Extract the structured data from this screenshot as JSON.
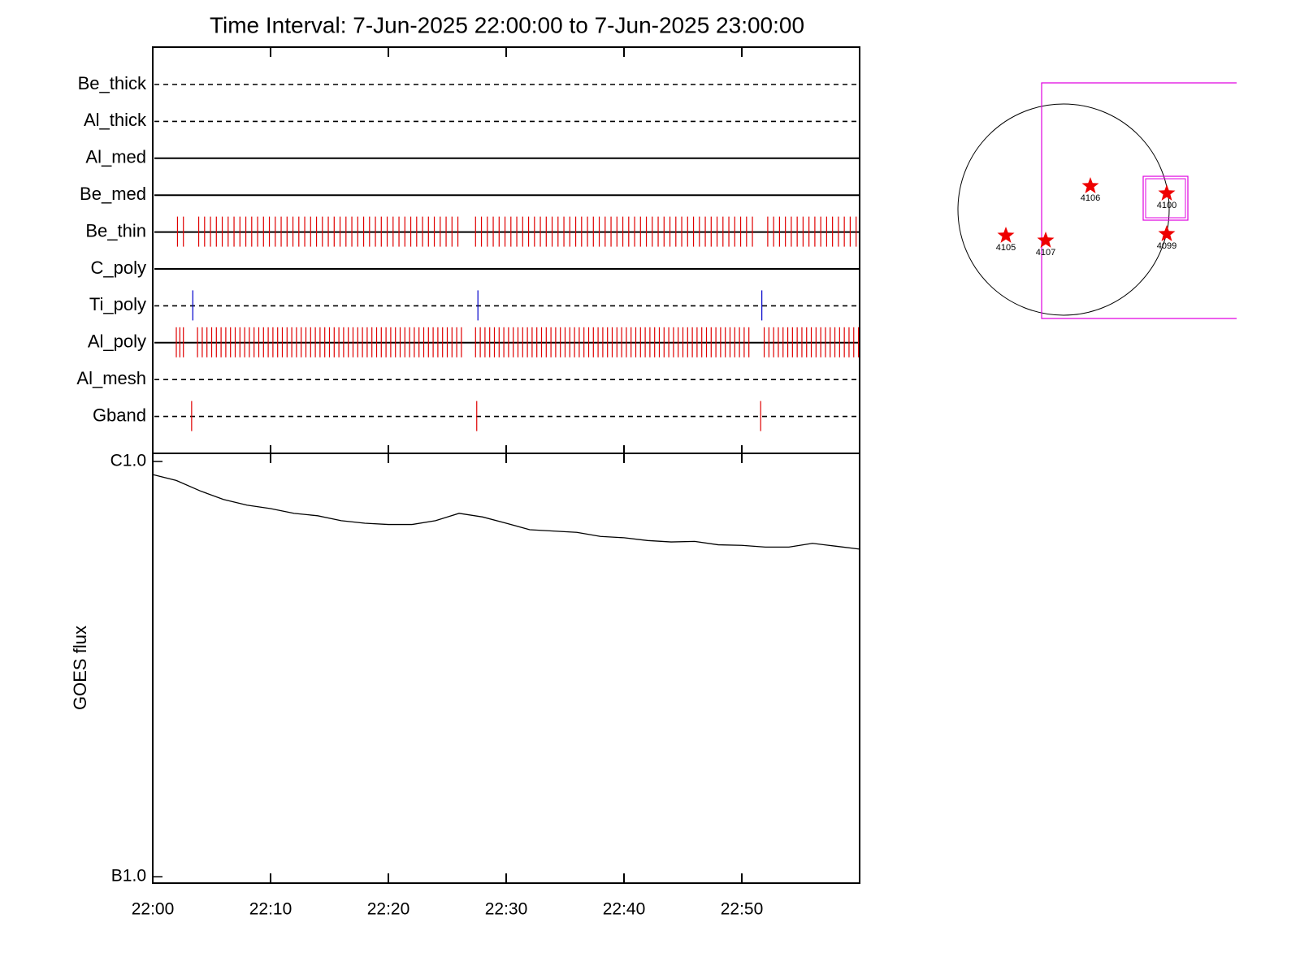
{
  "chart_data": [
    {
      "type": "timeline",
      "title": "Time Interval:  7-Jun-2025 22:00:00 to  7-Jun-2025 23:00:00",
      "xlim": [
        0,
        60
      ],
      "rows": [
        {
          "name": "Be_thick",
          "style": "dashed",
          "events": []
        },
        {
          "name": "Al_thick",
          "style": "dashed",
          "events": []
        },
        {
          "name": "Al_med",
          "style": "solid",
          "events": []
        },
        {
          "name": "Be_med",
          "style": "solid",
          "events": []
        },
        {
          "name": "Be_thin",
          "style": "solid",
          "color": "#e00000",
          "events": [
            2.1,
            2.6,
            3.9,
            4.4,
            4.9,
            5.4,
            5.9,
            6.4,
            6.9,
            7.4,
            7.9,
            8.4,
            8.9,
            9.4,
            9.9,
            10.4,
            10.9,
            11.4,
            11.9,
            12.4,
            12.9,
            13.4,
            13.9,
            14.4,
            14.9,
            15.4,
            15.9,
            16.4,
            16.9,
            17.4,
            17.9,
            18.4,
            18.9,
            19.4,
            19.9,
            20.4,
            20.9,
            21.4,
            21.9,
            22.4,
            22.9,
            23.4,
            23.9,
            24.4,
            24.9,
            25.4,
            25.9,
            27.4,
            27.9,
            28.4,
            28.9,
            29.4,
            29.9,
            30.4,
            30.9,
            31.4,
            31.9,
            32.4,
            32.9,
            33.4,
            33.9,
            34.4,
            34.9,
            35.4,
            35.9,
            36.4,
            36.9,
            37.4,
            37.9,
            38.4,
            38.9,
            39.4,
            39.9,
            40.4,
            40.9,
            41.4,
            41.9,
            42.4,
            42.9,
            43.4,
            43.9,
            44.4,
            44.9,
            45.4,
            45.9,
            46.4,
            46.9,
            47.4,
            47.9,
            48.4,
            48.9,
            49.4,
            49.9,
            50.4,
            50.9,
            52.2,
            52.7,
            53.2,
            53.7,
            54.2,
            54.7,
            55.2,
            55.7,
            56.2,
            56.7,
            57.2,
            57.7,
            58.2,
            58.7,
            59.2,
            59.7
          ]
        },
        {
          "name": "C_poly",
          "style": "solid",
          "events": []
        },
        {
          "name": "Ti_poly",
          "style": "dashed",
          "color": "#0000cc",
          "events": [
            3.4,
            27.6,
            51.7
          ]
        },
        {
          "name": "Al_poly",
          "style": "solid",
          "color": "#e00000",
          "events": [
            2.0,
            2.3,
            2.6,
            3.8,
            4.2,
            4.6,
            5.0,
            5.4,
            5.8,
            6.2,
            6.6,
            7.0,
            7.4,
            7.8,
            8.2,
            8.6,
            9.0,
            9.4,
            9.8,
            10.2,
            10.6,
            11.0,
            11.4,
            11.8,
            12.2,
            12.6,
            13.0,
            13.4,
            13.8,
            14.2,
            14.6,
            15.0,
            15.4,
            15.8,
            16.2,
            16.6,
            17.0,
            17.4,
            17.8,
            18.2,
            18.6,
            19.0,
            19.4,
            19.8,
            20.2,
            20.6,
            21.0,
            21.4,
            21.8,
            22.2,
            22.6,
            23.0,
            23.4,
            23.8,
            24.2,
            24.6,
            25.0,
            25.4,
            25.8,
            26.2,
            27.4,
            27.8,
            28.2,
            28.6,
            29.0,
            29.4,
            29.8,
            30.2,
            30.6,
            31.0,
            31.4,
            31.8,
            32.2,
            32.6,
            33.0,
            33.4,
            33.8,
            34.2,
            34.6,
            35.0,
            35.4,
            35.8,
            36.2,
            36.6,
            37.0,
            37.4,
            37.8,
            38.2,
            38.6,
            39.0,
            39.4,
            39.8,
            40.2,
            40.6,
            41.0,
            41.4,
            41.8,
            42.2,
            42.6,
            43.0,
            43.4,
            43.8,
            44.2,
            44.6,
            45.0,
            45.4,
            45.8,
            46.2,
            46.6,
            47.0,
            47.4,
            47.8,
            48.2,
            48.6,
            49.0,
            49.4,
            49.8,
            50.2,
            50.6,
            51.9,
            52.3,
            52.7,
            53.1,
            53.5,
            53.9,
            54.3,
            54.7,
            55.1,
            55.5,
            55.9,
            56.3,
            56.7,
            57.1,
            57.5,
            57.9,
            58.3,
            58.7,
            59.1,
            59.5,
            59.9
          ]
        },
        {
          "name": "Al_mesh",
          "style": "dashed",
          "events": []
        },
        {
          "name": "Gband",
          "style": "dashed",
          "color": "#e00000",
          "events": [
            3.3,
            27.5,
            51.6
          ]
        }
      ]
    },
    {
      "type": "line",
      "ylabel": "GOES flux",
      "log": true,
      "xlim": [
        0,
        60
      ],
      "ylim": [
        9.65e-08,
        1.046e-06
      ],
      "yticks": [
        {
          "value": 1e-06,
          "label": "C1.0"
        },
        {
          "value": 1e-07,
          "label": "B1.0"
        }
      ],
      "xticks": [
        {
          "value": 0,
          "label": "22:00"
        },
        {
          "value": 10,
          "label": "22:10"
        },
        {
          "value": 20,
          "label": "22:20"
        },
        {
          "value": 30,
          "label": "22:30"
        },
        {
          "value": 40,
          "label": "22:40"
        },
        {
          "value": 50,
          "label": "22:50"
        }
      ],
      "x": [
        0,
        2,
        4,
        6,
        8,
        10,
        12,
        14,
        16,
        18,
        20,
        22,
        24,
        26,
        28,
        30,
        32,
        34,
        36,
        38,
        40,
        42,
        44,
        46,
        48,
        50,
        52,
        54,
        56,
        58,
        60
      ],
      "series": [
        {
          "color": "#000000",
          "values": [
            9.3e-07,
            9e-07,
            8.5e-07,
            8.1e-07,
            7.85e-07,
            7.7e-07,
            7.5e-07,
            7.4e-07,
            7.2e-07,
            7.1e-07,
            7.05e-07,
            7.05e-07,
            7.2e-07,
            7.5e-07,
            7.35e-07,
            7.1e-07,
            6.85e-07,
            6.8e-07,
            6.75e-07,
            6.6e-07,
            6.55e-07,
            6.45e-07,
            6.4e-07,
            6.42e-07,
            6.3e-07,
            6.28e-07,
            6.22e-07,
            6.22e-07,
            6.35e-07,
            6.25e-07,
            6.15e-07
          ]
        }
      ]
    }
  ],
  "map": {
    "regions": [
      {
        "label": "4106"
      },
      {
        "label": "4100"
      },
      {
        "label": "4105"
      },
      {
        "label": "4107"
      },
      {
        "label": "4099"
      }
    ]
  }
}
